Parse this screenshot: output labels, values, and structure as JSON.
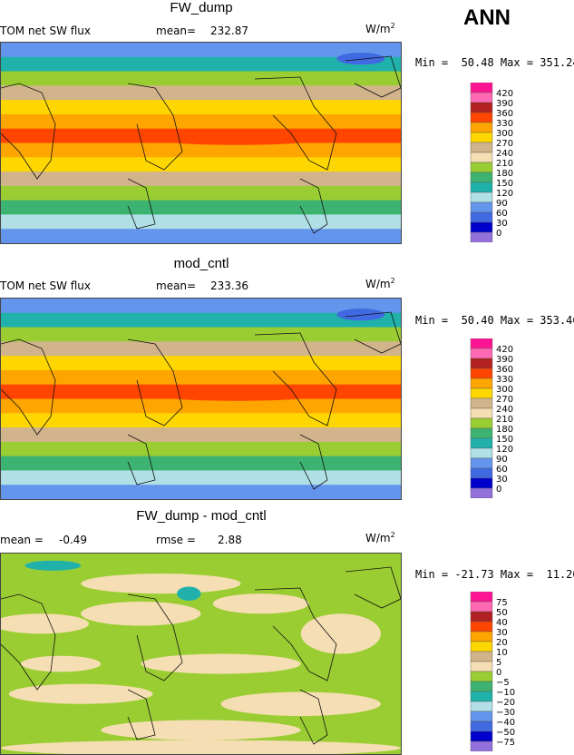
{
  "header": {
    "season": "ANN"
  },
  "units": "W/m",
  "units_sup": "2",
  "panels": [
    {
      "title": "FW_dump",
      "left_label": "TOM net SW flux",
      "stat_label": "mean=",
      "stat_value": "232.87",
      "minmax": "Min =  50.48 Max = 351.24"
    },
    {
      "title": "mod_cntl",
      "left_label": "TOM net SW flux",
      "stat_label": "mean=",
      "stat_value": "233.36",
      "minmax": "Min =  50.40 Max = 353.46"
    },
    {
      "title": "FW_dump - mod_cntl",
      "left_label": "mean =",
      "left_value": "-0.49",
      "stat_label": "rmse =",
      "stat_value": "2.88",
      "minmax": "Min = -21.73 Max =  11.20"
    }
  ],
  "chart_data": [
    {
      "type": "heatmap",
      "title": "FW_dump",
      "variable": "TOM net SW flux",
      "mean": 232.87,
      "min": 50.48,
      "max": 351.24,
      "units": "W/m2",
      "levels": [
        0,
        30,
        60,
        90,
        120,
        150,
        180,
        210,
        240,
        270,
        300,
        330,
        360,
        390,
        420
      ],
      "colors": [
        "#9370db",
        "#0000cd",
        "#4169e1",
        "#6495ed",
        "#b0e0e6",
        "#20b2aa",
        "#3cb371",
        "#9acd32",
        "#f5deb3",
        "#d2b48c",
        "#ffd700",
        "#ffa500",
        "#ff4500",
        "#b22222",
        "#ff69b4",
        "#ff1493"
      ],
      "zonal_band_values": [
        60,
        120,
        180,
        240,
        270,
        300,
        330,
        300,
        270,
        240,
        180,
        150,
        90,
        60
      ]
    },
    {
      "type": "heatmap",
      "title": "mod_cntl",
      "variable": "TOM net SW flux",
      "mean": 233.36,
      "min": 50.4,
      "max": 353.46,
      "units": "W/m2",
      "levels": [
        0,
        30,
        60,
        90,
        120,
        150,
        180,
        210,
        240,
        270,
        300,
        330,
        360,
        390,
        420
      ],
      "colors": [
        "#9370db",
        "#0000cd",
        "#4169e1",
        "#6495ed",
        "#b0e0e6",
        "#20b2aa",
        "#3cb371",
        "#9acd32",
        "#f5deb3",
        "#d2b48c",
        "#ffd700",
        "#ffa500",
        "#ff4500",
        "#b22222",
        "#ff69b4",
        "#ff1493"
      ],
      "zonal_band_values": [
        60,
        120,
        180,
        240,
        270,
        300,
        330,
        300,
        270,
        240,
        180,
        150,
        90,
        60
      ]
    },
    {
      "type": "heatmap",
      "title": "FW_dump - mod_cntl",
      "mean": -0.49,
      "rmse": 2.88,
      "min": -21.73,
      "max": 11.2,
      "units": "W/m2",
      "levels": [
        -75,
        -50,
        -40,
        -30,
        -20,
        -10,
        -5,
        0,
        5,
        10,
        20,
        30,
        40,
        50,
        75
      ],
      "colors": [
        "#9370db",
        "#0000cd",
        "#4169e1",
        "#6495ed",
        "#b0e0e6",
        "#20b2aa",
        "#3cb371",
        "#9acd32",
        "#f5deb3",
        "#d2b48c",
        "#ffd700",
        "#ffa500",
        "#ff4500",
        "#b22222",
        "#ff69b4",
        "#ff1493"
      ]
    }
  ],
  "colorbars": [
    {
      "labels": [
        "420",
        "390",
        "360",
        "330",
        "300",
        "270",
        "240",
        "210",
        "180",
        "150",
        "120",
        "90",
        "60",
        "30",
        "0"
      ]
    },
    {
      "labels": [
        "420",
        "390",
        "360",
        "330",
        "300",
        "270",
        "240",
        "210",
        "180",
        "150",
        "120",
        "90",
        "60",
        "30",
        "0"
      ]
    },
    {
      "labels": [
        "75",
        "50",
        "40",
        "30",
        "20",
        "10",
        "5",
        "0",
        "−5",
        "−10",
        "−20",
        "−30",
        "−40",
        "−50",
        "−75"
      ]
    }
  ]
}
